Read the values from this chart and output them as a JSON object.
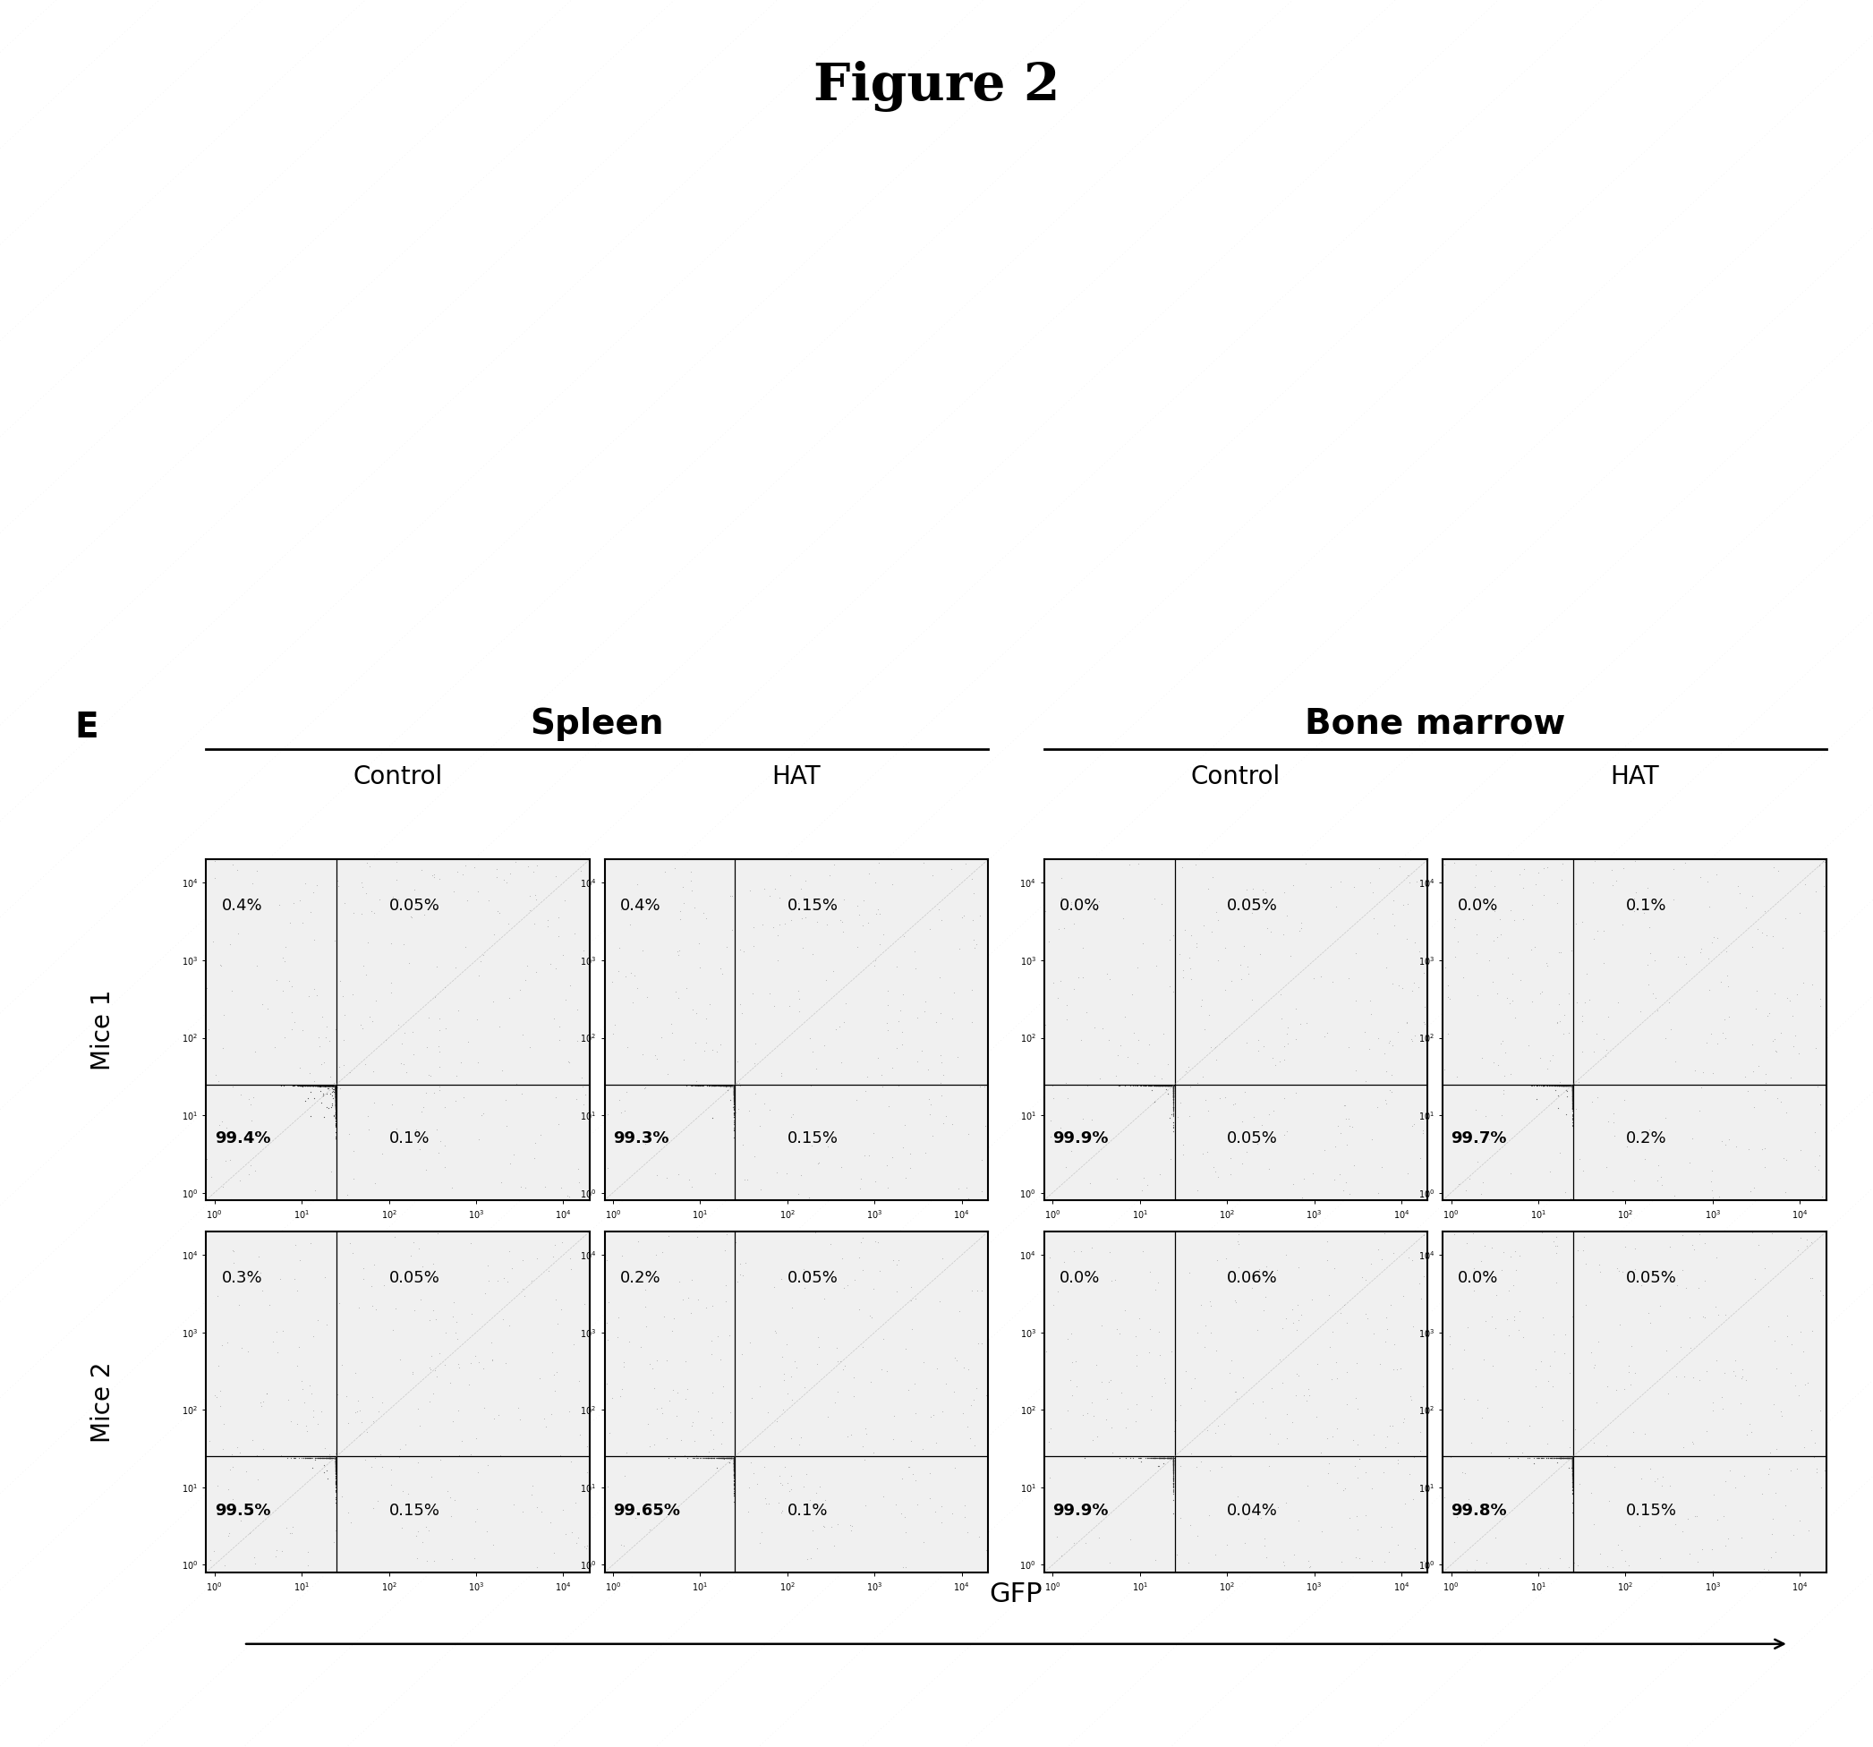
{
  "title": "Figure 2",
  "panel_label": "E",
  "group_labels": [
    "Spleen",
    "Bone marrow"
  ],
  "col_labels": [
    "Control",
    "HAT",
    "Control",
    "HAT"
  ],
  "row_labels": [
    "Mice 1",
    "Mice 2"
  ],
  "xlabel": "GFP",
  "plots": {
    "row0_col0": {
      "ul": "0.4%",
      "ur": "0.05%",
      "ll": "99.4%",
      "lr": "0.1%",
      "density": "heavy"
    },
    "row0_col1": {
      "ul": "0.4%",
      "ur": "0.15%",
      "ll": "99.3%",
      "lr": "0.15%",
      "density": "medium"
    },
    "row0_col2": {
      "ul": "0.0%",
      "ur": "0.05%",
      "ll": "99.9%",
      "lr": "0.05%",
      "density": "medium"
    },
    "row0_col3": {
      "ul": "0.0%",
      "ur": "0.1%",
      "ll": "99.7%",
      "lr": "0.2%",
      "density": "medium"
    },
    "row1_col0": {
      "ul": "0.3%",
      "ur": "0.05%",
      "ll": "99.5%",
      "lr": "0.15%",
      "density": "medium"
    },
    "row1_col1": {
      "ul": "0.2%",
      "ur": "0.05%",
      "ll": "99.65%",
      "lr": "0.1%",
      "density": "medium"
    },
    "row1_col2": {
      "ul": "0.0%",
      "ur": "0.06%",
      "ll": "99.9%",
      "lr": "0.04%",
      "density": "medium"
    },
    "row1_col3": {
      "ul": "0.0%",
      "ur": "0.05%",
      "ll": "99.8%",
      "lr": "0.15%",
      "density": "medium"
    }
  },
  "background_color": "#ffffff"
}
